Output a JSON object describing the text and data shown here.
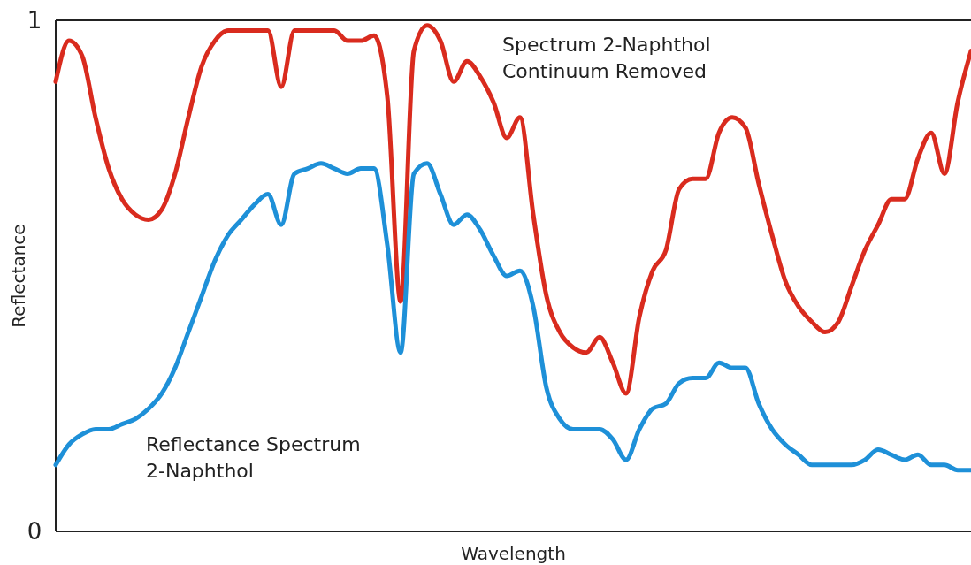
{
  "chart_data": {
    "type": "line",
    "xlabel": "Wavelength",
    "ylabel": "Reflectance",
    "categories": [
      null,
      null,
      null,
      null,
      null,
      null,
      null,
      null,
      null,
      null,
      null,
      null,
      null,
      null,
      null,
      null,
      null,
      null,
      null,
      null,
      null,
      null,
      null,
      null,
      null,
      null,
      null,
      null,
      null,
      null,
      null,
      null,
      null,
      null,
      null,
      null,
      null,
      null,
      null,
      null,
      null,
      null,
      null,
      null,
      null,
      null,
      null,
      null,
      null,
      null,
      null,
      null,
      null,
      null,
      null,
      null,
      null,
      null,
      null,
      null,
      null,
      null,
      null,
      null,
      null,
      null,
      null,
      null,
      null,
      null
    ],
    "ylim": [
      0,
      1
    ],
    "yticks": [
      0,
      1
    ],
    "tick_labels": "y",
    "series": [
      {
        "name": "Spectrum 2-Naphthol Continuum Removed",
        "color": "#d92b1e",
        "values": [
          0.88,
          0.96,
          0.93,
          0.81,
          0.71,
          0.65,
          0.62,
          0.61,
          0.63,
          0.7,
          0.81,
          0.91,
          0.96,
          0.98,
          0.98,
          0.98,
          0.98,
          0.87,
          0.98,
          0.98,
          0.98,
          0.98,
          0.96,
          0.96,
          0.97,
          0.85,
          0.45,
          0.94,
          0.99,
          0.96,
          0.88,
          0.92,
          0.89,
          0.84,
          0.77,
          0.81,
          0.62,
          0.46,
          0.39,
          0.36,
          0.35,
          0.38,
          0.33,
          0.27,
          0.42,
          0.51,
          0.55,
          0.67,
          0.69,
          0.69,
          0.78,
          0.81,
          0.79,
          0.68,
          0.58,
          0.49,
          0.44,
          0.41,
          0.39,
          0.41,
          0.48,
          0.55,
          0.6,
          0.65,
          0.65,
          0.73,
          0.78,
          0.7,
          0.84,
          0.94
        ]
      },
      {
        "name": "Reflectance Spectrum 2-Naphthol",
        "color": "#1e90d8",
        "values": [
          0.13,
          0.17,
          0.19,
          0.2,
          0.2,
          0.21,
          0.22,
          0.24,
          0.27,
          0.32,
          0.39,
          0.46,
          0.53,
          0.58,
          0.61,
          0.64,
          0.66,
          0.6,
          0.7,
          0.71,
          0.72,
          0.71,
          0.7,
          0.71,
          0.71,
          0.56,
          0.35,
          0.7,
          0.72,
          0.66,
          0.6,
          0.62,
          0.59,
          0.54,
          0.5,
          0.51,
          0.44,
          0.28,
          0.22,
          0.2,
          0.2,
          0.2,
          0.18,
          0.14,
          0.2,
          0.24,
          0.25,
          0.29,
          0.3,
          0.3,
          0.33,
          0.32,
          0.32,
          0.25,
          0.2,
          0.17,
          0.15,
          0.13,
          0.13,
          0.13,
          0.13,
          0.14,
          0.16,
          0.15,
          0.14,
          0.15,
          0.13,
          0.13,
          0.12,
          0.12
        ]
      }
    ]
  }
}
